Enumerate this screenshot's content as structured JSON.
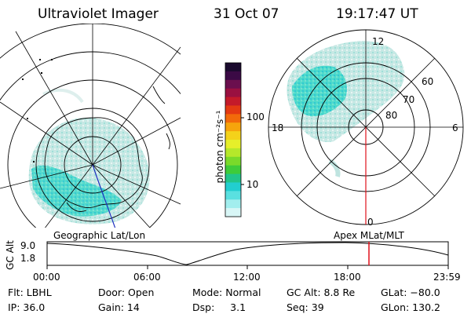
{
  "header": {
    "title": "Ultraviolet Imager",
    "date": "31 Oct 07",
    "time": "19:17:47 UT"
  },
  "colorbar": {
    "unit_label": "photon cm⁻²s⁻¹",
    "ticks": [
      "100",
      "10"
    ],
    "colors": [
      "#1a0a2e",
      "#3b0a45",
      "#6b0f4e",
      "#9a1040",
      "#c41a2a",
      "#e43a12",
      "#f26a0a",
      "#f6a40c",
      "#f4d21a",
      "#e6ef2a",
      "#b6e82a",
      "#7ada2a",
      "#3ecc3a",
      "#22c58a",
      "#22ced0",
      "#5ae0e0",
      "#a2eeee",
      "#d8f6f6"
    ]
  },
  "left_map": {
    "label": "Geographic Lat/Lon",
    "emission_color": "#22d6c0"
  },
  "right_map": {
    "label": "Apex  MLat/MLT",
    "mlt_labels": {
      "top": "12",
      "left": "18",
      "right": "6",
      "bottom": "0"
    },
    "lat_labels": [
      "60",
      "70",
      "80"
    ]
  },
  "altitude_plot": {
    "ylabel": "GC Alt",
    "yticks": [
      "9.0",
      "1.8"
    ],
    "xticks": [
      "00:00",
      "06:00",
      "12:00",
      "18:00",
      "23:59"
    ],
    "current_marker_color": "#e0101a"
  },
  "info": {
    "flt": "Flt: LBHL",
    "ip": "IP: 36.0",
    "door": "Door: Open",
    "gain": "Gain: 14",
    "mode": "Mode: Normal",
    "dsp": "Dsp:     3.1",
    "gcalt": "GC Alt: 8.8 Re",
    "seq": "Seq: 39",
    "glat": "GLat: −80.0",
    "glon": "GLon: 130.2"
  }
}
